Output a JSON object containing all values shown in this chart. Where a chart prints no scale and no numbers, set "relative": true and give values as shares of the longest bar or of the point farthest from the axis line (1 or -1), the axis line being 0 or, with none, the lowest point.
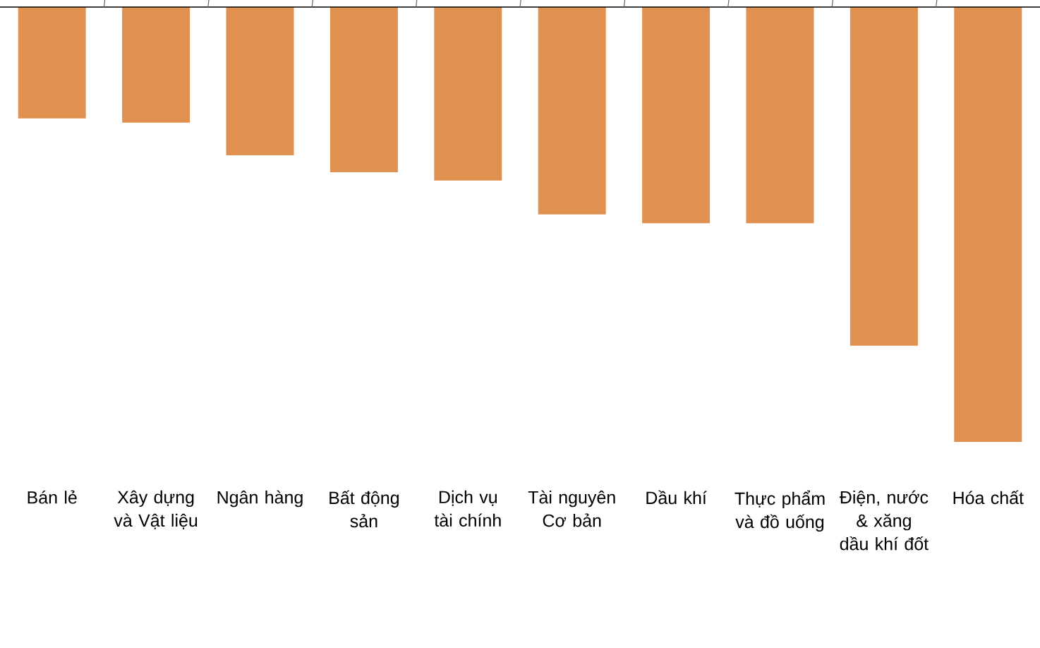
{
  "chart_data": {
    "type": "bar",
    "relative": true,
    "color": "#e0914f",
    "categories": [
      "Bán lẻ",
      "Xây dựng và Vật liệu",
      "Ngân hàng",
      "Bất động sản",
      "Dịch vụ tài chính",
      "Tài nguyên Cơ bản",
      "Dầu khí",
      "Thực phẩm và đồ uống",
      "Điện, nước & xăng dầu khí đốt",
      "Hóa chất"
    ],
    "values": [
      -0.256,
      -0.266,
      -0.341,
      -0.38,
      -0.399,
      -0.477,
      -0.497,
      -0.497,
      -0.779,
      -1
    ]
  }
}
